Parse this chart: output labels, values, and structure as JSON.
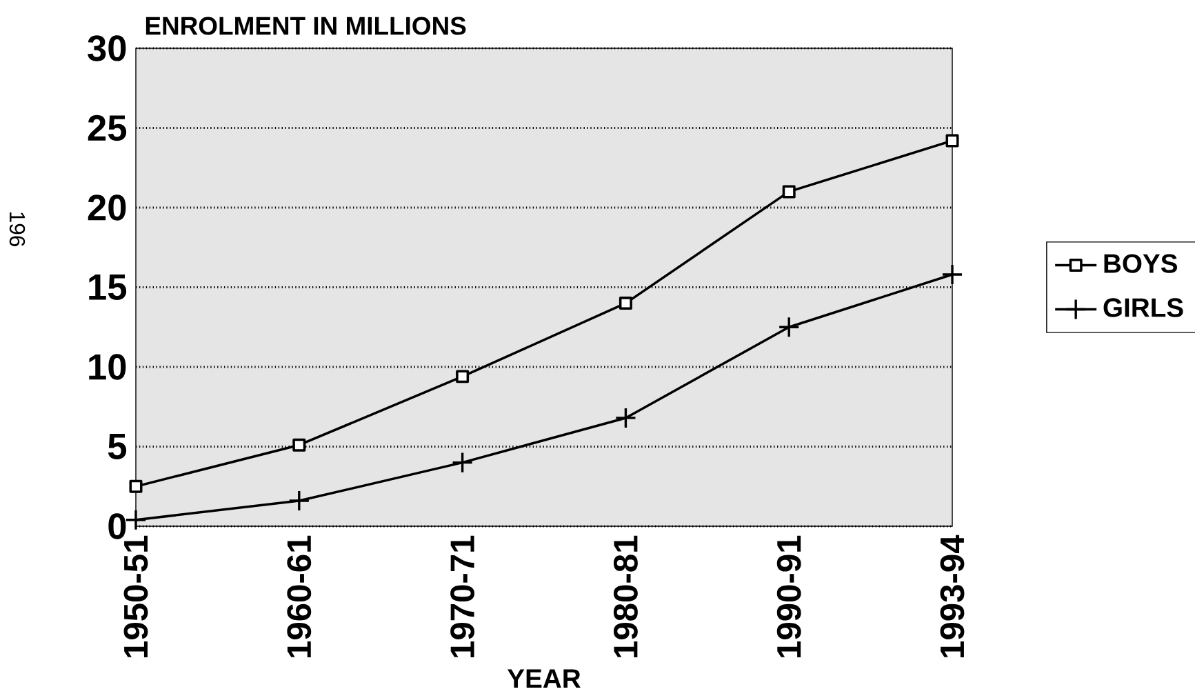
{
  "chart_data": {
    "type": "line",
    "xlabel": "YEAR",
    "ylabel": "ENROLMENT IN MILLIONS",
    "categories": [
      "1950-51",
      "1960-61",
      "1970-71",
      "1980-81",
      "1990-91",
      "1993-94"
    ],
    "series": [
      {
        "name": "BOYS",
        "color": "#000000",
        "marker": "square",
        "values": [
          2.5,
          5.1,
          9.4,
          14.0,
          21.0,
          24.2
        ]
      },
      {
        "name": "GIRLS",
        "color": "#000000",
        "marker": "cross",
        "values": [
          0.4,
          1.6,
          4.0,
          6.8,
          12.5,
          15.8
        ]
      }
    ],
    "ylim": [
      0,
      30
    ],
    "yticks": [
      0,
      5,
      10,
      15,
      20,
      25,
      30
    ],
    "grid": "y",
    "legend": "right",
    "line_style": "solid",
    "annotations": [
      "196"
    ]
  }
}
